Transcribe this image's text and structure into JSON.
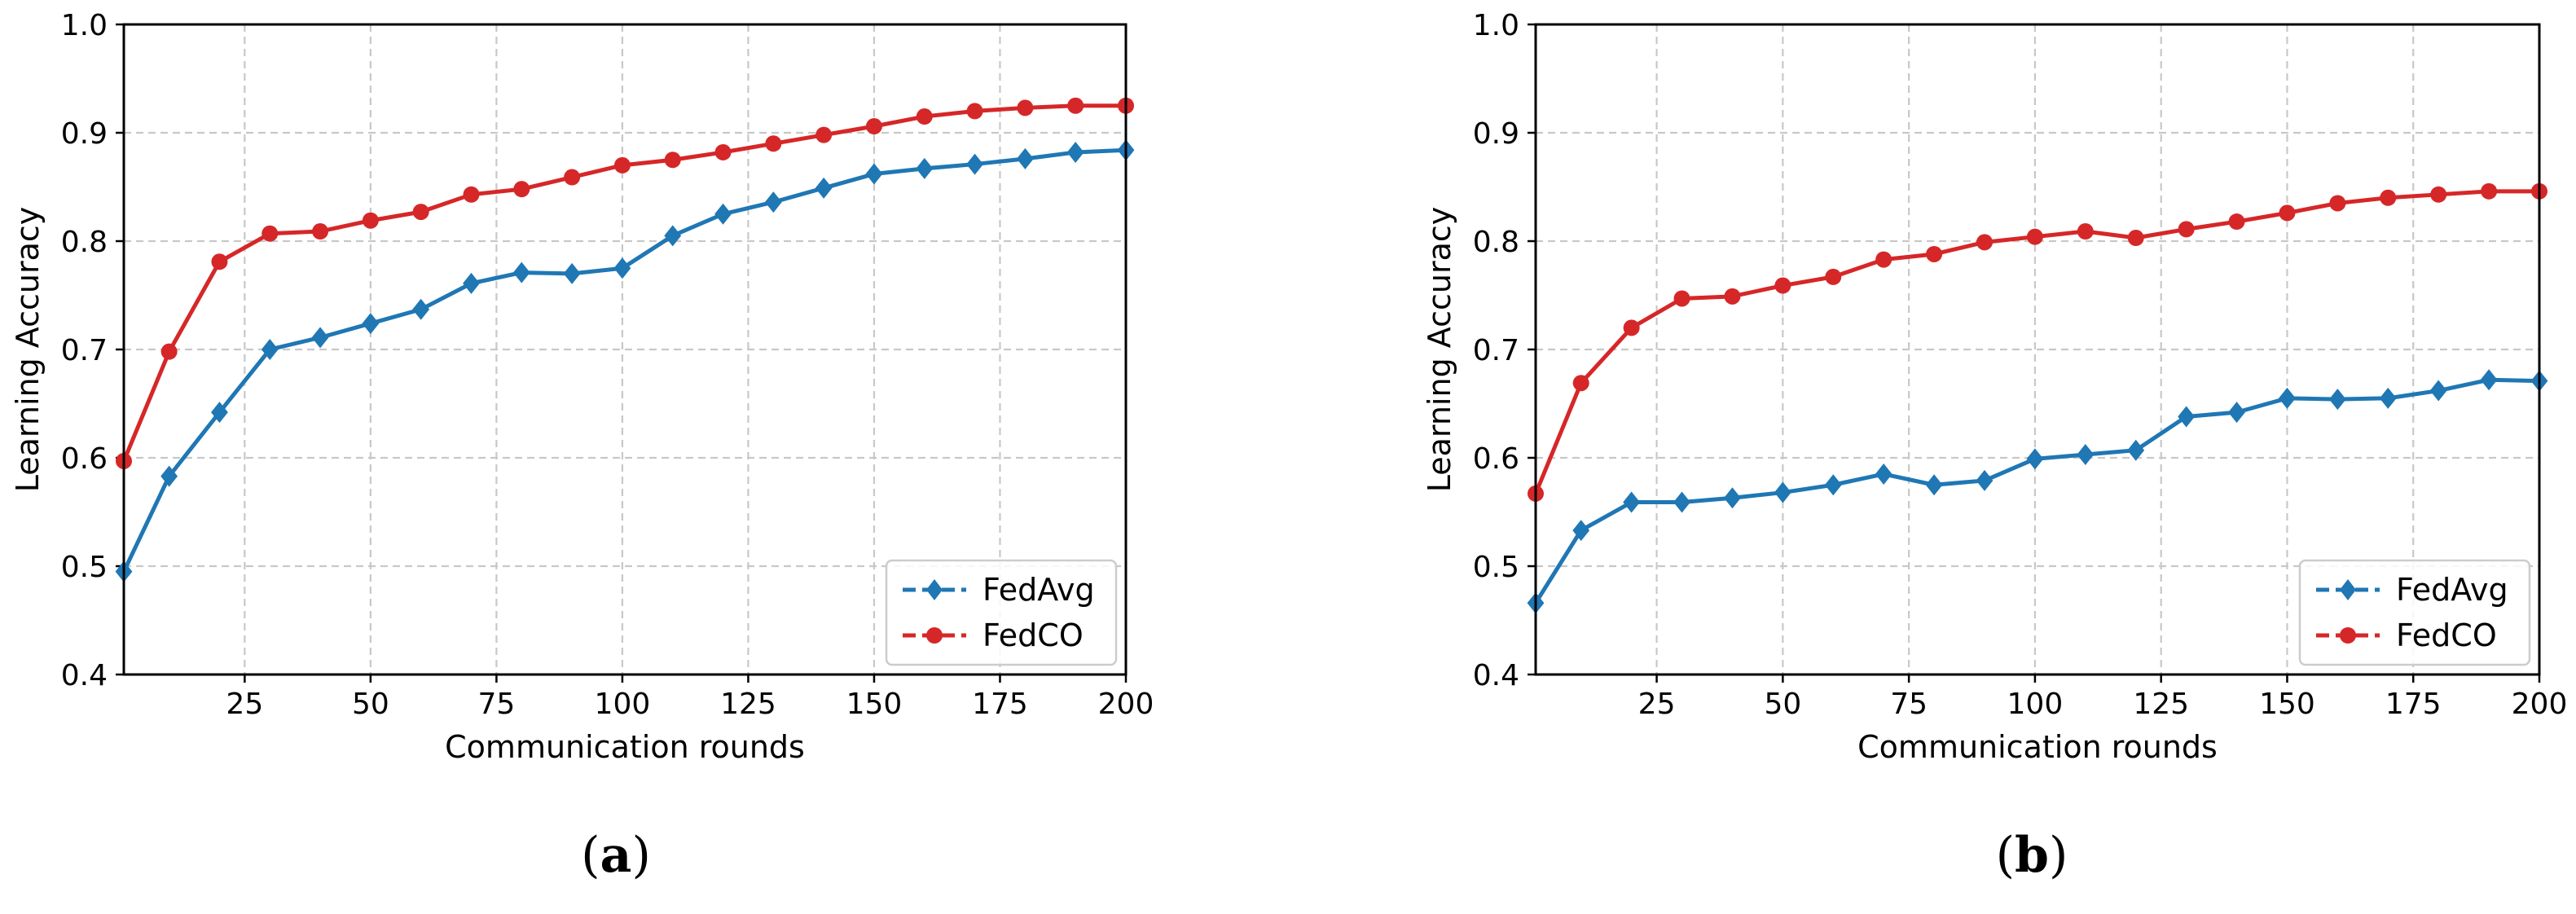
{
  "chart_data": [
    {
      "type": "line",
      "panel_label": "a",
      "title": "",
      "xlabel": "Communication rounds",
      "ylabel": "Learning Accuracy",
      "xlim": [
        1,
        200
      ],
      "ylim": [
        0.4,
        1.0
      ],
      "xticks": [
        25,
        50,
        75,
        100,
        125,
        150,
        175,
        200
      ],
      "yticks": [
        0.4,
        0.5,
        0.6,
        0.7,
        0.8,
        0.9,
        1.0
      ],
      "ytick_labels": [
        "0.4",
        "0.5",
        "0.6",
        "0.7",
        "0.8",
        "0.9",
        "1.0"
      ],
      "grid": true,
      "legend_position": "lower-right",
      "x": [
        1,
        10,
        20,
        30,
        40,
        50,
        60,
        70,
        80,
        90,
        100,
        110,
        120,
        130,
        140,
        150,
        160,
        170,
        180,
        190,
        200
      ],
      "series": [
        {
          "name": "FedAvg",
          "color": "#1f77b4",
          "marker": "diamond",
          "values": [
            0.495,
            0.583,
            0.642,
            0.7,
            0.711,
            0.724,
            0.737,
            0.761,
            0.771,
            0.77,
            0.775,
            0.805,
            0.825,
            0.836,
            0.849,
            0.862,
            0.867,
            0.871,
            0.876,
            0.882,
            0.884
          ]
        },
        {
          "name": "FedCO",
          "color": "#d62728",
          "marker": "circle",
          "values": [
            0.597,
            0.698,
            0.781,
            0.807,
            0.809,
            0.819,
            0.827,
            0.843,
            0.848,
            0.859,
            0.87,
            0.875,
            0.882,
            0.89,
            0.898,
            0.906,
            0.915,
            0.92,
            0.923,
            0.925,
            0.925
          ]
        }
      ]
    },
    {
      "type": "line",
      "panel_label": "b",
      "title": "",
      "xlabel": "Communication rounds",
      "ylabel": "Learning Accuracy",
      "xlim": [
        1,
        200
      ],
      "ylim": [
        0.4,
        1.0
      ],
      "xticks": [
        25,
        50,
        75,
        100,
        125,
        150,
        175,
        200
      ],
      "yticks": [
        0.4,
        0.5,
        0.6,
        0.7,
        0.8,
        0.9,
        1.0
      ],
      "ytick_labels": [
        "0.4",
        "0.5",
        "0.6",
        "0.7",
        "0.8",
        "0.9",
        "1.0"
      ],
      "grid": true,
      "legend_position": "lower-right",
      "x": [
        1,
        10,
        20,
        30,
        40,
        50,
        60,
        70,
        80,
        90,
        100,
        110,
        120,
        130,
        140,
        150,
        160,
        170,
        180,
        190,
        200
      ],
      "series": [
        {
          "name": "FedAvg",
          "color": "#1f77b4",
          "marker": "diamond",
          "values": [
            0.466,
            0.533,
            0.559,
            0.559,
            0.563,
            0.568,
            0.575,
            0.585,
            0.575,
            0.579,
            0.599,
            0.603,
            0.607,
            0.638,
            0.642,
            0.655,
            0.654,
            0.655,
            0.662,
            0.672,
            0.671
          ]
        },
        {
          "name": "FedCO",
          "color": "#d62728",
          "marker": "circle",
          "values": [
            0.567,
            0.669,
            0.72,
            0.747,
            0.749,
            0.759,
            0.767,
            0.783,
            0.788,
            0.799,
            0.804,
            0.809,
            0.803,
            0.811,
            0.818,
            0.826,
            0.835,
            0.84,
            0.843,
            0.846,
            0.846
          ]
        }
      ]
    }
  ]
}
